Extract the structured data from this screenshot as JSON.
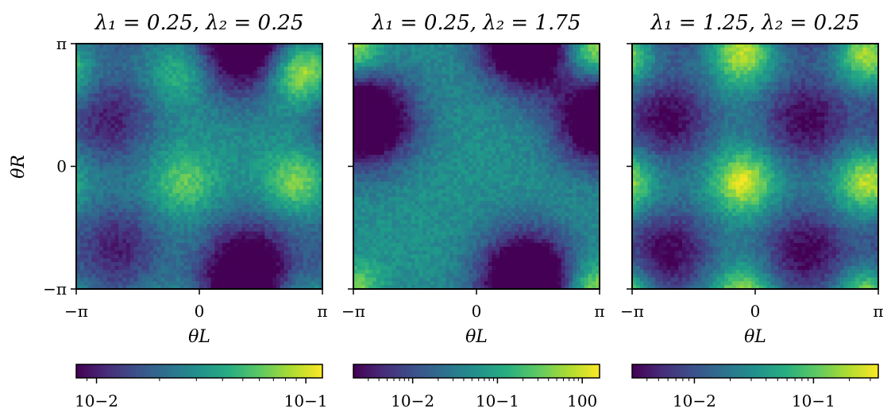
{
  "chart_data": [
    {
      "type": "heatmap",
      "title": "λ₁ = 0.25, λ₂ = 0.25",
      "xlabel": "θL",
      "ylabel": "θR",
      "x_ticks": [
        "−π",
        "0",
        "π"
      ],
      "y_ticks": [
        "π",
        "0",
        "−π"
      ],
      "xlim": [
        -3.1416,
        3.1416
      ],
      "ylim": [
        -3.1416,
        3.1416
      ],
      "grid_bins": 64,
      "colormap": "viridis",
      "color_scale": "log",
      "clim": [
        0.008,
        0.12
      ],
      "colorbar_ticks": [
        "10−2",
        "10−1"
      ],
      "colorbar_tick_values": [
        0.01,
        0.1
      ],
      "peaks": [
        {
          "x": 2.6,
          "y": 2.4,
          "value": 0.12
        },
        {
          "x": -0.4,
          "y": -0.4,
          "value": 0.065
        },
        {
          "x": 2.5,
          "y": -0.4,
          "value": 0.075
        },
        {
          "x": -0.4,
          "y": 2.4,
          "value": 0.06
        }
      ],
      "minima": [
        {
          "x": -2.3,
          "y": 1.2,
          "value": 0.01
        },
        {
          "x": 1.0,
          "y": 2.8,
          "value": 0.008
        },
        {
          "x": 1.3,
          "y": -2.4,
          "value": 0.008
        },
        {
          "x": -2.1,
          "y": -2.1,
          "value": 0.01
        }
      ]
    },
    {
      "type": "heatmap",
      "title": "λ₁ = 0.25, λ₂ = 1.75",
      "xlabel": "θL",
      "ylabel": "",
      "x_ticks": [
        "−π",
        "0",
        "π"
      ],
      "y_ticks": [],
      "xlim": [
        -3.1416,
        3.1416
      ],
      "ylim": [
        -3.1416,
        3.1416
      ],
      "grid_bins": 64,
      "colormap": "viridis",
      "color_scale": "log",
      "clim": [
        0.002,
        1.6
      ],
      "colorbar_ticks": [
        "10−2",
        "10−1",
        "100"
      ],
      "colorbar_tick_values": [
        0.01,
        0.1,
        1
      ],
      "peaks": [
        {
          "x": 3.0,
          "y": 3.0,
          "value": 1.6
        }
      ],
      "minima": [
        {
          "x": -2.6,
          "y": 1.2,
          "value": 0.002
        },
        {
          "x": 1.3,
          "y": 3.0,
          "value": 0.002
        },
        {
          "x": 1.3,
          "y": -2.7,
          "value": 0.002
        },
        {
          "x": 3.0,
          "y": 1.2,
          "value": 0.003
        }
      ]
    },
    {
      "type": "heatmap",
      "title": "λ₁ = 1.25, λ₂ = 0.25",
      "xlabel": "θL",
      "ylabel": "",
      "x_ticks": [
        "−π",
        "0",
        "π"
      ],
      "y_ticks": [],
      "xlim": [
        -3.1416,
        3.1416
      ],
      "ylim": [
        -3.1416,
        3.1416
      ],
      "grid_bins": 64,
      "colormap": "viridis",
      "color_scale": "log",
      "clim": [
        0.003,
        0.35
      ],
      "colorbar_ticks": [
        "10−2",
        "10−1"
      ],
      "colorbar_tick_values": [
        0.01,
        0.1
      ],
      "peaks": [
        {
          "x": -0.3,
          "y": 2.9,
          "value": 0.3
        },
        {
          "x": -0.3,
          "y": -0.4,
          "value": 0.32
        },
        {
          "x": 2.9,
          "y": 2.9,
          "value": 0.35
        },
        {
          "x": 2.9,
          "y": -0.4,
          "value": 0.3
        }
      ],
      "minima": [
        {
          "x": -2.2,
          "y": 1.2,
          "value": 0.003
        },
        {
          "x": 1.3,
          "y": 1.2,
          "value": 0.003
        },
        {
          "x": -2.2,
          "y": -2.2,
          "value": 0.003
        },
        {
          "x": 1.3,
          "y": -2.2,
          "value": 0.003
        }
      ]
    }
  ]
}
